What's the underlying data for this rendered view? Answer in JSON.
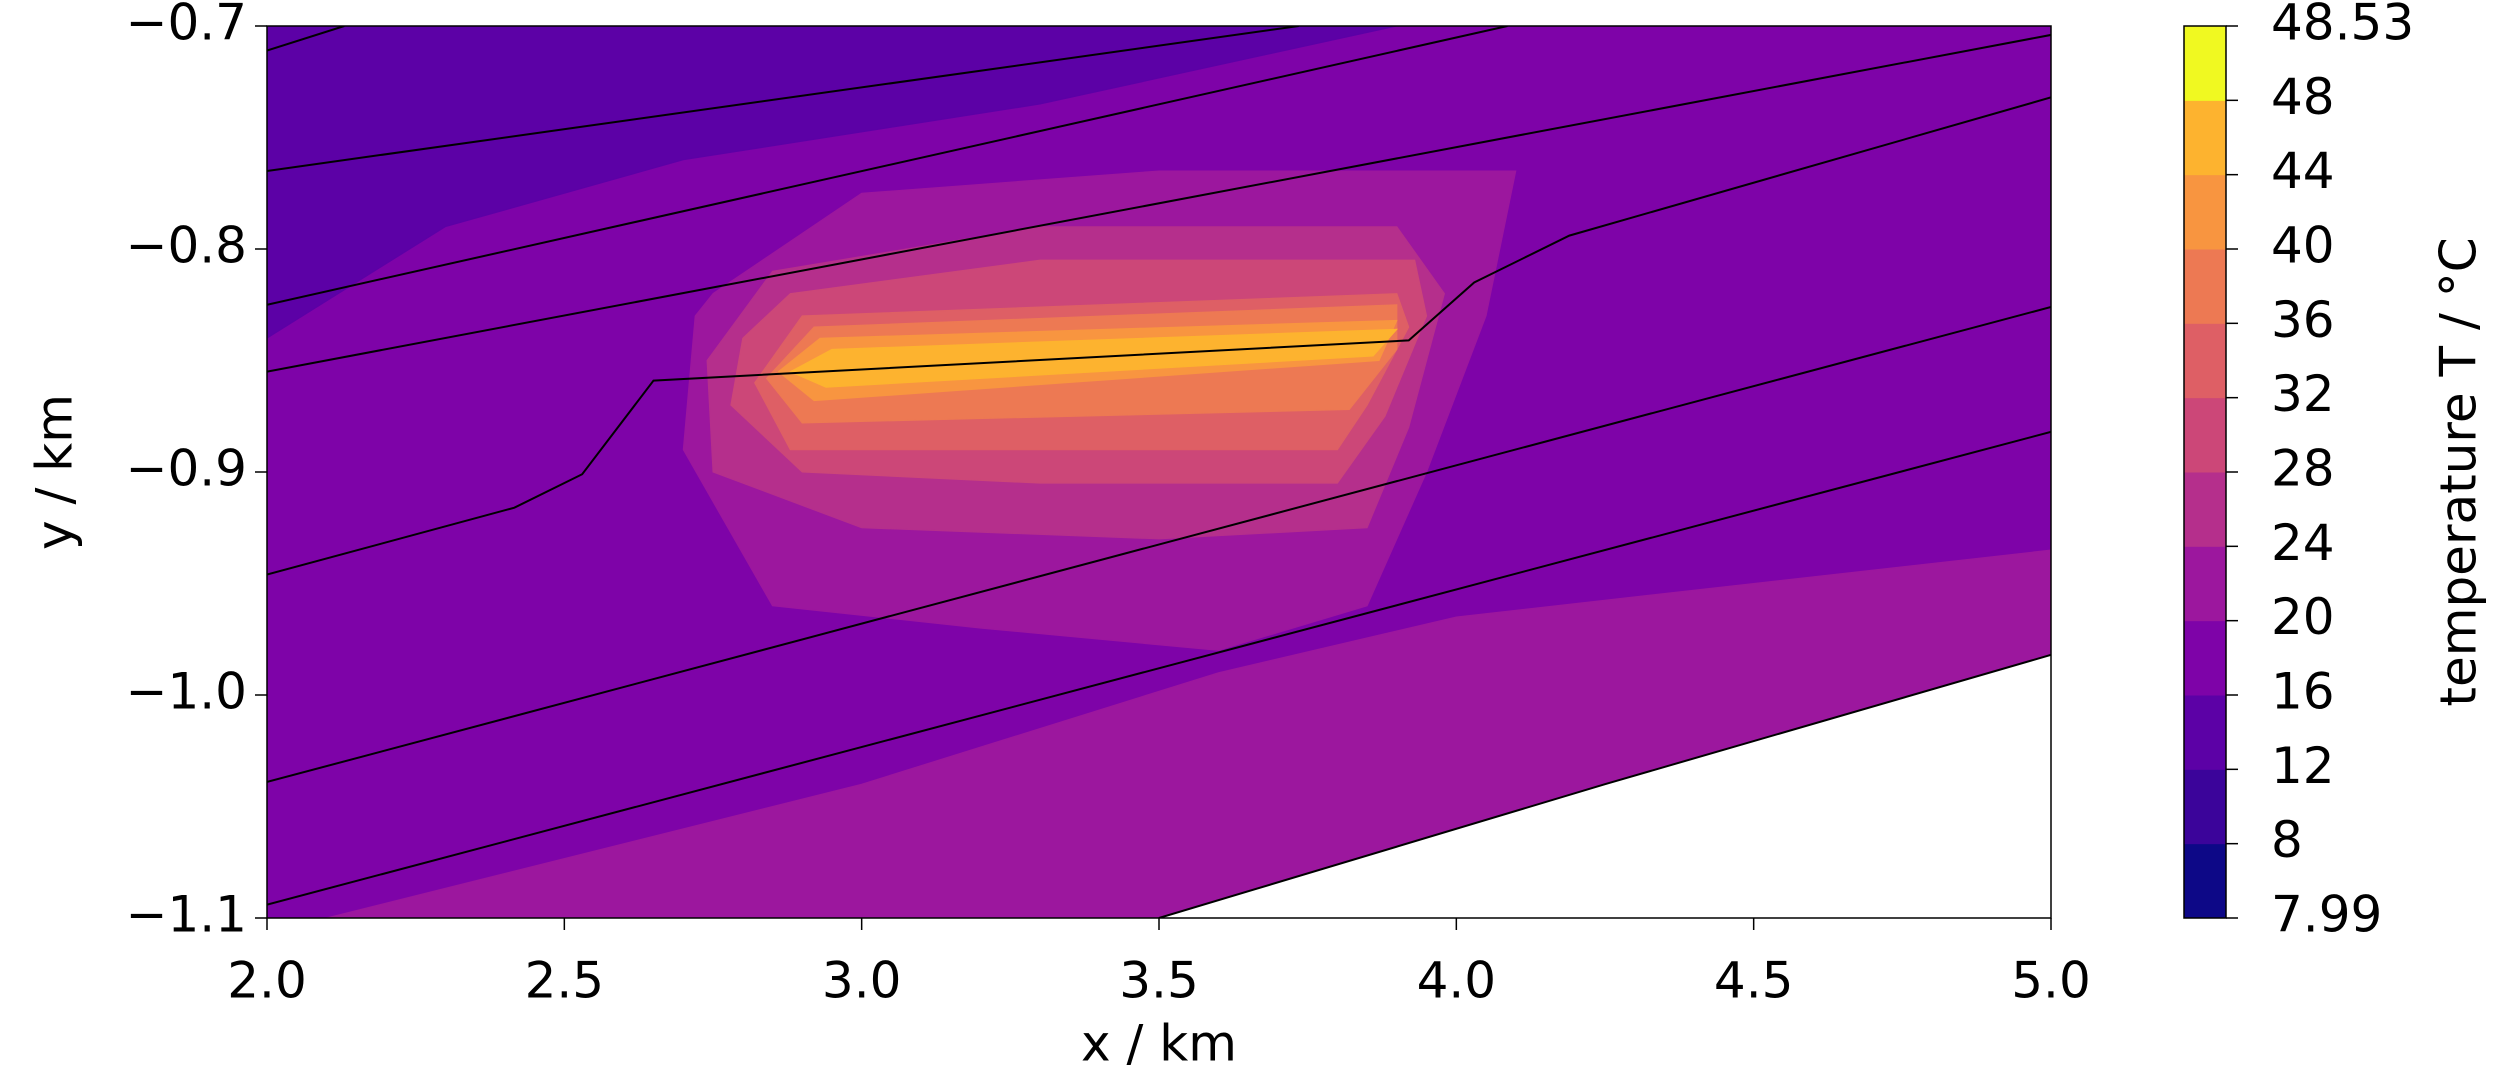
{
  "chart_data": {
    "type": "contour",
    "xlabel": "x / km",
    "ylabel": "y / km",
    "xlim": [
      2.0,
      5.0
    ],
    "ylim": [
      -1.1,
      -0.7
    ],
    "xticks": [
      {
        "value": 2,
        "label": "2.0"
      },
      {
        "value": 2.5,
        "label": "2.5"
      },
      {
        "value": 3,
        "label": "3.0"
      },
      {
        "value": 3.5,
        "label": "3.5"
      },
      {
        "value": 4,
        "label": "4.0"
      },
      {
        "value": 4.5,
        "label": "4.5"
      },
      {
        "value": 5,
        "label": "5.0"
      }
    ],
    "yticks": [
      {
        "value": -1.1,
        "label": "−1.1"
      },
      {
        "value": -1.0,
        "label": "−1.0"
      },
      {
        "value": -0.9,
        "label": "−0.9"
      },
      {
        "value": -0.8,
        "label": "−0.8"
      },
      {
        "value": -0.7,
        "label": "−0.7"
      }
    ],
    "colorbar": {
      "label": "temperature T / °C",
      "levels": [
        7.99,
        8,
        12,
        16,
        20,
        24,
        28,
        32,
        36,
        40,
        44,
        48,
        48.53
      ],
      "colors": [
        "#0d0887",
        "#3b049a",
        "#5c01a6",
        "#7e03a8",
        "#9c179e",
        "#b52f8c",
        "#cc4778",
        "#de5f65",
        "#ed7953",
        "#f89540",
        "#fdb32f",
        "#f0f921"
      ]
    },
    "regions": [
      {
        "color": "#7e03a8",
        "x": [
          2.0,
          5.0,
          5.0,
          4.25,
          3.5,
          2.0
        ],
        "y": [
          -0.7,
          -0.7,
          -0.982,
          -1.04,
          -1.1,
          -1.1
        ]
      },
      {
        "color": "#5c01a6",
        "x": [
          2.0,
          3.9,
          3.3,
          2.7,
          2.3,
          2.0
        ],
        "y": [
          -0.7,
          -0.7,
          -0.735,
          -0.76,
          -0.79,
          -0.84
        ]
      },
      {
        "color": "#9c179e",
        "x": [
          2.1,
          3.0,
          3.6,
          4.0,
          4.5,
          5.0,
          5.0,
          4.25,
          3.5
        ],
        "y": [
          -1.1,
          -1.04,
          -0.99,
          -0.965,
          -0.95,
          -0.935,
          -0.982,
          -1.04,
          -1.1
        ]
      },
      {
        "color": "#9c179e",
        "x": [
          2.75,
          3.0,
          3.5,
          4.1,
          4.05,
          3.95,
          3.85,
          3.6,
          3.2,
          2.85,
          2.7,
          2.72
        ],
        "y": [
          -0.82,
          -0.775,
          -0.765,
          -0.765,
          -0.83,
          -0.9,
          -0.96,
          -0.98,
          -0.97,
          -0.96,
          -0.89,
          -0.83
        ]
      },
      {
        "color": "#b52f8c",
        "x": [
          2.85,
          3.3,
          3.9,
          3.98,
          3.92,
          3.85,
          3.5,
          3.0,
          2.75,
          2.74
        ],
        "y": [
          -0.81,
          -0.79,
          -0.79,
          -0.82,
          -0.88,
          -0.925,
          -0.93,
          -0.925,
          -0.9,
          -0.85
        ]
      },
      {
        "color": "#cc4778",
        "x": [
          2.88,
          3.3,
          3.93,
          3.95,
          3.88,
          3.8,
          3.3,
          2.9,
          2.78,
          2.8
        ],
        "y": [
          -0.82,
          -0.805,
          -0.805,
          -0.83,
          -0.875,
          -0.905,
          -0.905,
          -0.9,
          -0.87,
          -0.84
        ]
      },
      {
        "color": "#de5f65",
        "x": [
          2.9,
          3.9,
          3.92,
          3.85,
          3.8,
          2.88,
          2.82
        ],
        "y": [
          -0.83,
          -0.82,
          -0.835,
          -0.87,
          -0.89,
          -0.89,
          -0.86
        ]
      },
      {
        "color": "#ed7953",
        "x": [
          2.92,
          3.9,
          3.9,
          3.82,
          2.9,
          2.84
        ],
        "y": [
          -0.835,
          -0.825,
          -0.845,
          -0.872,
          -0.878,
          -0.858
        ]
      },
      {
        "color": "#f89540",
        "x": [
          2.93,
          3.9,
          3.87,
          2.92,
          2.86
        ],
        "y": [
          -0.84,
          -0.832,
          -0.85,
          -0.868,
          -0.855
        ]
      },
      {
        "color": "#fdb32f",
        "x": [
          2.95,
          3.9,
          3.86,
          2.94,
          2.88
        ],
        "y": [
          -0.845,
          -0.836,
          -0.848,
          -0.862,
          -0.855
        ]
      }
    ],
    "lines": [
      {
        "x": [
          2.0,
          2.13
        ],
        "y": [
          -0.711,
          -0.7
        ]
      },
      {
        "x": [
          2.0,
          3.735
        ],
        "y": [
          -0.765,
          -0.7
        ]
      },
      {
        "x": [
          2.0,
          4.086
        ],
        "y": [
          -0.825,
          -0.7
        ]
      },
      {
        "x": [
          2.0,
          5.0
        ],
        "y": [
          -0.855,
          -0.704
        ]
      },
      {
        "x": [
          2.0,
          2.416,
          2.53,
          2.65,
          3.92,
          4.03,
          4.19,
          5.0
        ],
        "y": [
          -0.946,
          -0.916,
          -0.901,
          -0.859,
          -0.841,
          -0.815,
          -0.794,
          -0.732
        ]
      },
      {
        "x": [
          2.0,
          5.0
        ],
        "y": [
          -1.039,
          -0.826
        ]
      },
      {
        "x": [
          2.0,
          5.0
        ],
        "y": [
          -1.094,
          -0.882
        ]
      },
      {
        "x": [
          3.5,
          4.25,
          5.0
        ],
        "y": [
          -1.1,
          -1.04,
          -0.982
        ]
      }
    ]
  }
}
